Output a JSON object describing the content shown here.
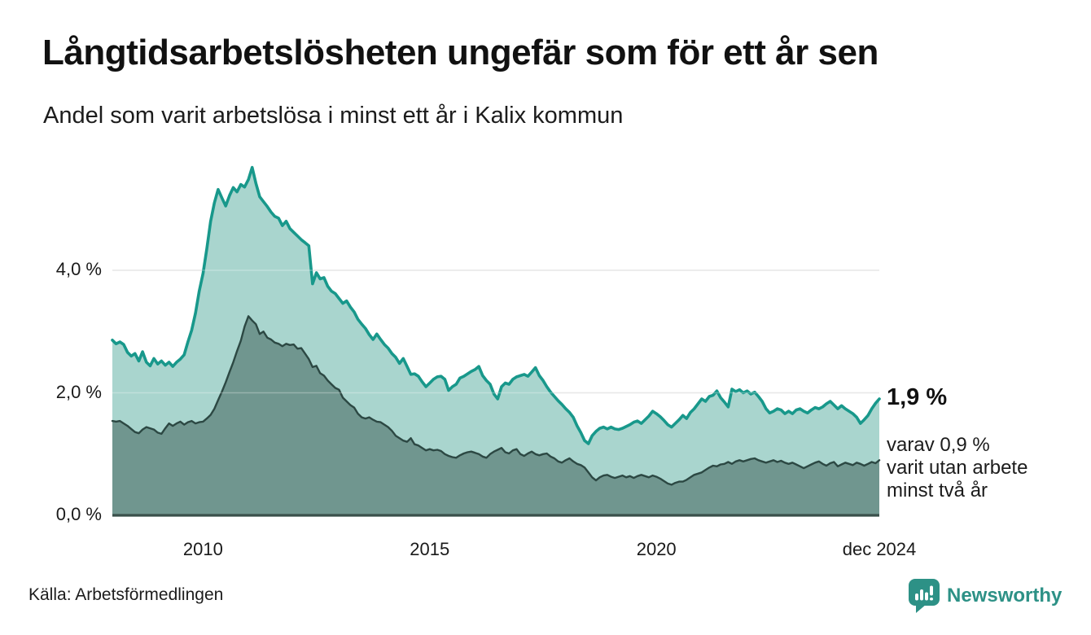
{
  "header": {
    "title": "Långtidsarbetslösheten ungefär som för ett år sen",
    "subtitle": "Andel som varit arbetslösa i minst ett år i Kalix kommun"
  },
  "chart_data": {
    "type": "area",
    "title": "Långtidsarbetslösheten ungefär som för ett år sen",
    "subtitle": "Andel som varit arbetslösa i minst ett år i Kalix kommun",
    "x_start_month": "2008-01",
    "x_end_month": "2024-12",
    "ylim": [
      0,
      5.9
    ],
    "grid": "horizontal",
    "colors": {
      "total_line": "#18988b",
      "total_fill": "#a9d5ce",
      "two_year_line": "#2c4843",
      "two_year_fill": "#70968f",
      "baseline": "#3a504b",
      "gridline": "#e0e0e0"
    },
    "y_ticks": [
      {
        "label": "0,0 %",
        "value": 0
      },
      {
        "label": "2,0 %",
        "value": 2
      },
      {
        "label": "4,0 %",
        "value": 4
      }
    ],
    "x_ticks": [
      {
        "label": "2010",
        "i": 24
      },
      {
        "label": "2015",
        "i": 84
      },
      {
        "label": "2020",
        "i": 144
      },
      {
        "label": "dec 2024",
        "i": 203
      }
    ],
    "series": [
      {
        "name": "arbetslösa minst ett år",
        "end_value_label": "1,9 %",
        "values": [
          2.86,
          2.8,
          2.83,
          2.79,
          2.66,
          2.6,
          2.64,
          2.52,
          2.67,
          2.5,
          2.44,
          2.56,
          2.47,
          2.52,
          2.45,
          2.5,
          2.43,
          2.5,
          2.55,
          2.62,
          2.83,
          3.02,
          3.3,
          3.66,
          3.95,
          4.35,
          4.8,
          5.1,
          5.32,
          5.18,
          5.05,
          5.22,
          5.35,
          5.28,
          5.4,
          5.36,
          5.48,
          5.68,
          5.42,
          5.2,
          5.12,
          5.04,
          4.95,
          4.88,
          4.85,
          4.73,
          4.8,
          4.68,
          4.62,
          4.56,
          4.5,
          4.45,
          4.4,
          3.78,
          3.96,
          3.86,
          3.88,
          3.74,
          3.66,
          3.62,
          3.54,
          3.46,
          3.5,
          3.4,
          3.32,
          3.2,
          3.12,
          3.05,
          2.95,
          2.87,
          2.96,
          2.87,
          2.79,
          2.73,
          2.64,
          2.58,
          2.48,
          2.56,
          2.43,
          2.3,
          2.31,
          2.27,
          2.18,
          2.1,
          2.16,
          2.22,
          2.26,
          2.27,
          2.22,
          2.04,
          2.1,
          2.14,
          2.24,
          2.27,
          2.31,
          2.35,
          2.38,
          2.43,
          2.28,
          2.2,
          2.14,
          1.98,
          1.9,
          2.1,
          2.16,
          2.14,
          2.22,
          2.26,
          2.28,
          2.3,
          2.27,
          2.34,
          2.41,
          2.28,
          2.2,
          2.1,
          2.01,
          1.94,
          1.87,
          1.81,
          1.74,
          1.68,
          1.6,
          1.46,
          1.35,
          1.22,
          1.17,
          1.3,
          1.37,
          1.42,
          1.44,
          1.41,
          1.44,
          1.41,
          1.4,
          1.42,
          1.45,
          1.48,
          1.52,
          1.54,
          1.5,
          1.56,
          1.62,
          1.7,
          1.66,
          1.61,
          1.55,
          1.48,
          1.44,
          1.5,
          1.56,
          1.63,
          1.58,
          1.68,
          1.74,
          1.82,
          1.9,
          1.86,
          1.94,
          1.96,
          2.03,
          1.92,
          1.85,
          1.77,
          2.06,
          2.02,
          2.05,
          2.0,
          2.03,
          1.98,
          2.01,
          1.94,
          1.86,
          1.74,
          1.67,
          1.7,
          1.74,
          1.72,
          1.66,
          1.7,
          1.66,
          1.72,
          1.74,
          1.7,
          1.67,
          1.72,
          1.76,
          1.74,
          1.77,
          1.82,
          1.86,
          1.8,
          1.74,
          1.79,
          1.74,
          1.7,
          1.66,
          1.6,
          1.5,
          1.56,
          1.63,
          1.74,
          1.83,
          1.9
        ]
      },
      {
        "name": "utan arbete minst två år",
        "end_value_label": "0,9 %",
        "values": [
          1.54,
          1.53,
          1.54,
          1.5,
          1.46,
          1.41,
          1.36,
          1.34,
          1.4,
          1.44,
          1.42,
          1.4,
          1.35,
          1.33,
          1.42,
          1.5,
          1.46,
          1.5,
          1.53,
          1.48,
          1.52,
          1.54,
          1.5,
          1.52,
          1.53,
          1.58,
          1.64,
          1.74,
          1.88,
          2.02,
          2.17,
          2.34,
          2.5,
          2.68,
          2.85,
          3.08,
          3.25,
          3.18,
          3.12,
          2.96,
          3.0,
          2.9,
          2.87,
          2.82,
          2.8,
          2.76,
          2.8,
          2.78,
          2.79,
          2.72,
          2.73,
          2.64,
          2.55,
          2.42,
          2.44,
          2.32,
          2.28,
          2.2,
          2.14,
          2.08,
          2.05,
          1.92,
          1.86,
          1.8,
          1.76,
          1.66,
          1.6,
          1.58,
          1.6,
          1.56,
          1.53,
          1.52,
          1.48,
          1.44,
          1.38,
          1.3,
          1.26,
          1.22,
          1.2,
          1.26,
          1.16,
          1.14,
          1.1,
          1.06,
          1.08,
          1.06,
          1.07,
          1.05,
          1.0,
          0.97,
          0.95,
          0.94,
          0.98,
          1.01,
          1.03,
          1.04,
          1.02,
          1.0,
          0.96,
          0.94,
          1.0,
          1.04,
          1.07,
          1.1,
          1.03,
          1.01,
          1.06,
          1.08,
          1.0,
          0.97,
          1.01,
          1.04,
          1.0,
          0.98,
          1.0,
          1.01,
          0.96,
          0.93,
          0.88,
          0.86,
          0.9,
          0.93,
          0.88,
          0.84,
          0.82,
          0.78,
          0.7,
          0.62,
          0.57,
          0.62,
          0.65,
          0.66,
          0.63,
          0.61,
          0.63,
          0.65,
          0.62,
          0.64,
          0.61,
          0.64,
          0.66,
          0.64,
          0.62,
          0.65,
          0.63,
          0.6,
          0.56,
          0.52,
          0.5,
          0.53,
          0.55,
          0.55,
          0.58,
          0.62,
          0.66,
          0.68,
          0.7,
          0.74,
          0.78,
          0.81,
          0.8,
          0.83,
          0.84,
          0.87,
          0.84,
          0.88,
          0.9,
          0.88,
          0.9,
          0.92,
          0.93,
          0.9,
          0.88,
          0.86,
          0.88,
          0.9,
          0.87,
          0.89,
          0.86,
          0.84,
          0.86,
          0.83,
          0.8,
          0.77,
          0.8,
          0.83,
          0.86,
          0.88,
          0.84,
          0.81,
          0.85,
          0.87,
          0.8,
          0.83,
          0.86,
          0.84,
          0.82,
          0.86,
          0.84,
          0.81,
          0.84,
          0.87,
          0.85,
          0.9
        ]
      }
    ],
    "annotations": {
      "end_value": "1,9 %",
      "note_line1": "varav 0,9 %",
      "note_line2": "varit utan arbete",
      "note_line3": "minst två år"
    },
    "legend": "none"
  },
  "footer": {
    "source": "Källa: Arbetsförmedlingen",
    "brand": "Newsworthy"
  }
}
